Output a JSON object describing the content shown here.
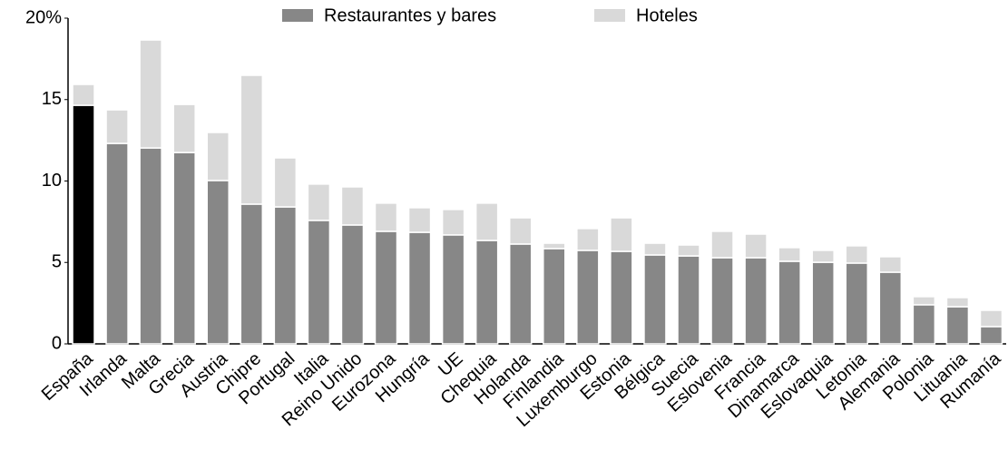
{
  "chart_data": {
    "type": "stacked_bar",
    "categories": [
      "España",
      "Irlanda",
      "Malta",
      "Grecia",
      "Austria",
      "Chipre",
      "Portugal",
      "Italia",
      "Reino Unido",
      "Eurozona",
      "Hungría",
      "UE",
      "Chequia",
      "Holanda",
      "Finlandia",
      "Luxemburgo",
      "Estonia",
      "Bélgica",
      "Suecia",
      "Eslovenia",
      "Francia",
      "Dinamarca",
      "Eslovaquia",
      "Letonia",
      "Alemania",
      "Polonia",
      "Lituania",
      "Rumanía"
    ],
    "series": [
      {
        "name": "Restaurantes y bares",
        "color": "#878787",
        "highlight_index": 0,
        "highlight_color": "#000000",
        "values": [
          14.65,
          12.31,
          12.03,
          11.75,
          10.03,
          8.58,
          8.41,
          7.58,
          7.3,
          6.91,
          6.85,
          6.69,
          6.35,
          6.13,
          5.85,
          5.74,
          5.68,
          5.46,
          5.4,
          5.29,
          5.29,
          5.07,
          5.01,
          4.96,
          4.4,
          2.4,
          2.28,
          1.06
        ]
      },
      {
        "name": "Hoteles",
        "color": "#d9d9d9",
        "values": [
          1.28,
          2.06,
          6.63,
          2.95,
          2.95,
          7.91,
          3.01,
          2.23,
          2.34,
          1.73,
          1.51,
          1.56,
          2.29,
          1.61,
          0.33,
          1.34,
          2.06,
          0.72,
          0.67,
          1.62,
          1.45,
          0.84,
          0.73,
          1.06,
          0.95,
          0.5,
          0.56,
          1.0
        ]
      }
    ],
    "ylim": [
      0,
      20
    ],
    "yticks": [
      0,
      5,
      10,
      15,
      {
        "value": 20,
        "label": "20%"
      }
    ],
    "grid": false
  }
}
